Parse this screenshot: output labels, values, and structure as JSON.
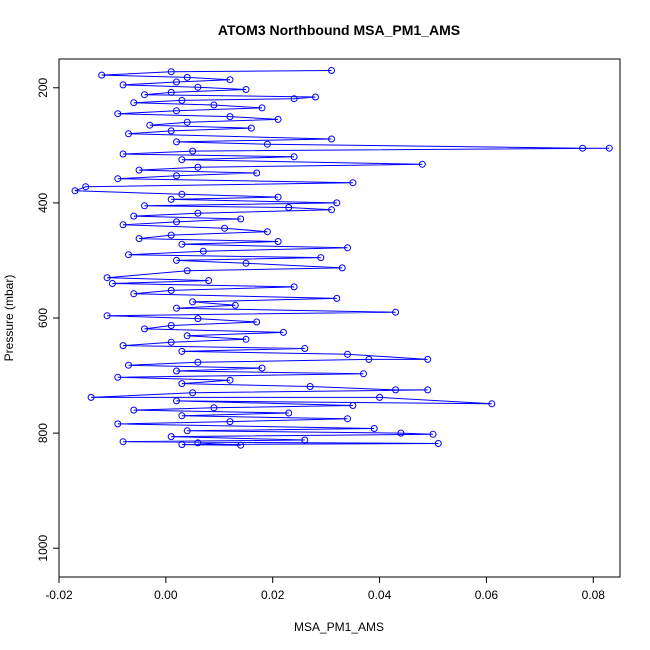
{
  "chart_data": {
    "type": "line",
    "title": "ATOM3 Northbound MSA_PM1_AMS",
    "xlabel": "MSA_PM1_AMS",
    "ylabel": "Pressure (mbar)",
    "xlim": [
      -0.02,
      0.085
    ],
    "ylim": [
      1050,
      150
    ],
    "y_reversed": true,
    "x_ticks": [
      -0.02,
      0.0,
      0.02,
      0.04,
      0.06,
      0.08
    ],
    "x_tick_labels": [
      "-0.02",
      "0.00",
      "0.02",
      "0.04",
      "0.06",
      "0.08"
    ],
    "y_ticks": [
      200,
      400,
      600,
      800,
      1000
    ],
    "y_tick_labels": [
      "200",
      "400",
      "600",
      "800",
      "1000"
    ],
    "grid": false,
    "legend": "none",
    "marker": "open-circle",
    "color": "#0000ff",
    "series": [
      {
        "points": [
          [
            0.031,
            170
          ],
          [
            0.001,
            172
          ],
          [
            -0.012,
            178
          ],
          [
            0.004,
            182
          ],
          [
            0.012,
            186
          ],
          [
            0.002,
            190
          ],
          [
            -0.008,
            195
          ],
          [
            0.006,
            199
          ],
          [
            0.015,
            203
          ],
          [
            0.001,
            208
          ],
          [
            -0.004,
            212
          ],
          [
            0.028,
            216
          ],
          [
            0.024,
            219
          ],
          [
            0.003,
            222
          ],
          [
            -0.006,
            226
          ],
          [
            0.009,
            230
          ],
          [
            0.018,
            235
          ],
          [
            0.002,
            240
          ],
          [
            -0.009,
            245
          ],
          [
            0.012,
            250
          ],
          [
            0.021,
            255
          ],
          [
            0.004,
            260
          ],
          [
            -0.003,
            265
          ],
          [
            0.016,
            270
          ],
          [
            0.001,
            275
          ],
          [
            -0.007,
            280
          ],
          [
            0.031,
            289
          ],
          [
            0.002,
            294
          ],
          [
            0.019,
            298
          ],
          [
            0.078,
            305
          ],
          [
            0.083,
            305
          ],
          [
            0.005,
            310
          ],
          [
            -0.008,
            315
          ],
          [
            0.024,
            320
          ],
          [
            0.003,
            325
          ],
          [
            0.048,
            333
          ],
          [
            0.006,
            338
          ],
          [
            -0.005,
            343
          ],
          [
            0.017,
            348
          ],
          [
            0.002,
            353
          ],
          [
            -0.009,
            358
          ],
          [
            0.035,
            365
          ],
          [
            -0.015,
            372
          ],
          [
            -0.017,
            379
          ],
          [
            0.003,
            385
          ],
          [
            0.021,
            390
          ],
          [
            0.001,
            394
          ],
          [
            0.032,
            400
          ],
          [
            -0.004,
            405
          ],
          [
            0.023,
            408
          ],
          [
            0.031,
            412
          ],
          [
            0.006,
            418
          ],
          [
            -0.006,
            423
          ],
          [
            0.014,
            428
          ],
          [
            0.002,
            433
          ],
          [
            -0.008,
            438
          ],
          [
            0.011,
            444
          ],
          [
            0.019,
            450
          ],
          [
            0.001,
            456
          ],
          [
            -0.005,
            462
          ],
          [
            0.021,
            467
          ],
          [
            0.003,
            472
          ],
          [
            0.034,
            478
          ],
          [
            0.007,
            484
          ],
          [
            -0.007,
            490
          ],
          [
            0.029,
            495
          ],
          [
            0.002,
            500
          ],
          [
            0.015,
            505
          ],
          [
            0.033,
            513
          ],
          [
            0.004,
            518
          ],
          [
            -0.011,
            530
          ],
          [
            0.008,
            535
          ],
          [
            -0.01,
            540
          ],
          [
            0.024,
            546
          ],
          [
            0.001,
            552
          ],
          [
            -0.006,
            558
          ],
          [
            0.032,
            566
          ],
          [
            0.005,
            572
          ],
          [
            0.013,
            578
          ],
          [
            0.002,
            583
          ],
          [
            0.043,
            590
          ],
          [
            -0.011,
            596
          ],
          [
            0.006,
            601
          ],
          [
            0.017,
            607
          ],
          [
            0.001,
            613
          ],
          [
            -0.004,
            619
          ],
          [
            0.022,
            625
          ],
          [
            0.004,
            631
          ],
          [
            0.015,
            637
          ],
          [
            0.001,
            642
          ],
          [
            -0.008,
            648
          ],
          [
            0.026,
            653
          ],
          [
            0.003,
            658
          ],
          [
            0.034,
            663
          ],
          [
            0.049,
            672
          ],
          [
            0.038,
            672
          ],
          [
            0.006,
            677
          ],
          [
            -0.007,
            682
          ],
          [
            0.018,
            687
          ],
          [
            0.002,
            692
          ],
          [
            0.037,
            697
          ],
          [
            -0.009,
            703
          ],
          [
            0.012,
            708
          ],
          [
            0.003,
            714
          ],
          [
            0.027,
            719
          ],
          [
            0.043,
            725
          ],
          [
            0.049,
            725
          ],
          [
            0.005,
            730
          ],
          [
            -0.014,
            738
          ],
          [
            0.04,
            738
          ],
          [
            0.061,
            749
          ],
          [
            0.002,
            744
          ],
          [
            0.035,
            752
          ],
          [
            0.009,
            756
          ],
          [
            -0.006,
            760
          ],
          [
            0.023,
            765
          ],
          [
            0.003,
            770
          ],
          [
            0.034,
            775
          ],
          [
            0.012,
            780
          ],
          [
            -0.009,
            784
          ],
          [
            0.039,
            792
          ],
          [
            0.004,
            796
          ],
          [
            0.044,
            800
          ],
          [
            0.05,
            802
          ],
          [
            0.001,
            806
          ],
          [
            0.026,
            812
          ],
          [
            -0.008,
            815
          ],
          [
            0.051,
            818
          ],
          [
            0.003,
            820
          ],
          [
            0.014,
            821
          ],
          [
            0.006,
            817
          ]
        ]
      }
    ]
  }
}
